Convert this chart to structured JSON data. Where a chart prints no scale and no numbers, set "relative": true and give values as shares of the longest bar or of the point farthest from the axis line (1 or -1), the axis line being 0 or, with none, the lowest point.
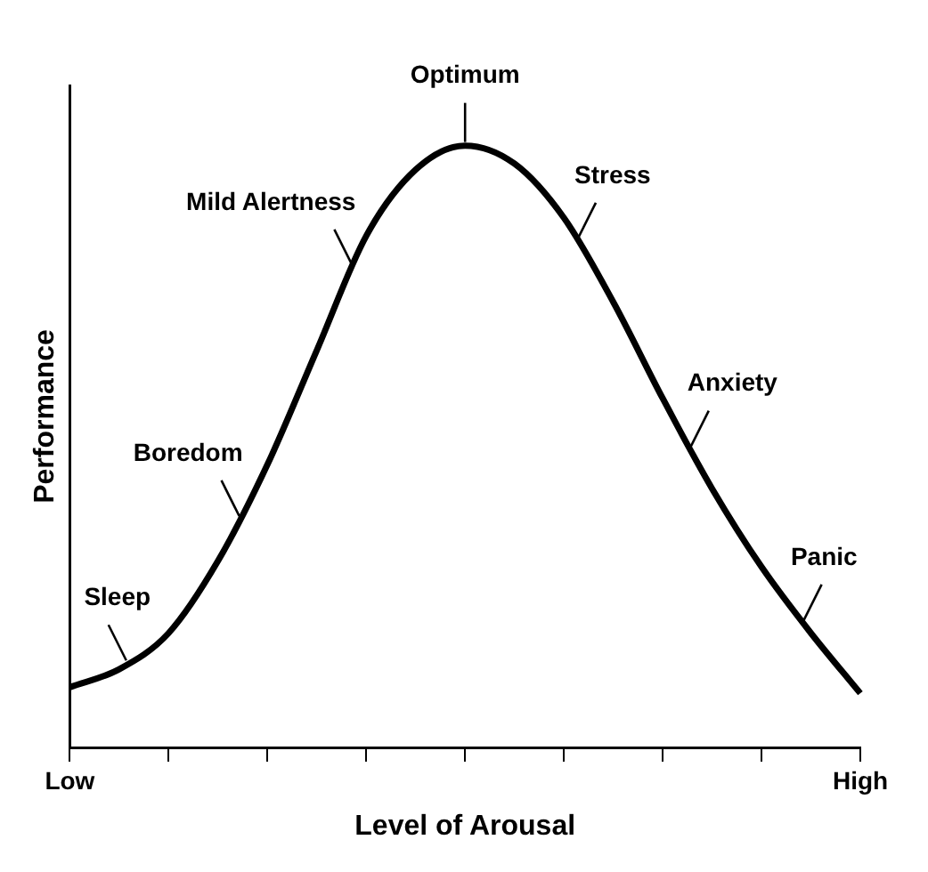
{
  "chart_data": {
    "type": "line",
    "relative": true,
    "xlabel": "Level of Arousal",
    "ylabel": "Performance",
    "color": "#000000",
    "categories": [
      "Low",
      null,
      null,
      null,
      null,
      null,
      null,
      null,
      null,
      null,
      null,
      null,
      null,
      null,
      null,
      null,
      "High"
    ],
    "values": [
      0.1,
      0.13,
      0.19,
      0.31,
      0.47,
      0.66,
      0.85,
      0.96,
      1,
      0.97,
      0.88,
      0.74,
      0.58,
      0.43,
      0.3,
      0.19,
      0.09
    ],
    "annotations": [
      "Sleep",
      "Boredom",
      "Mild Alertness",
      "Optimum",
      "Stress",
      "Anxiety",
      "Panic"
    ],
    "grid": false,
    "legend": false,
    "marker": "none",
    "line_style": "solid"
  }
}
